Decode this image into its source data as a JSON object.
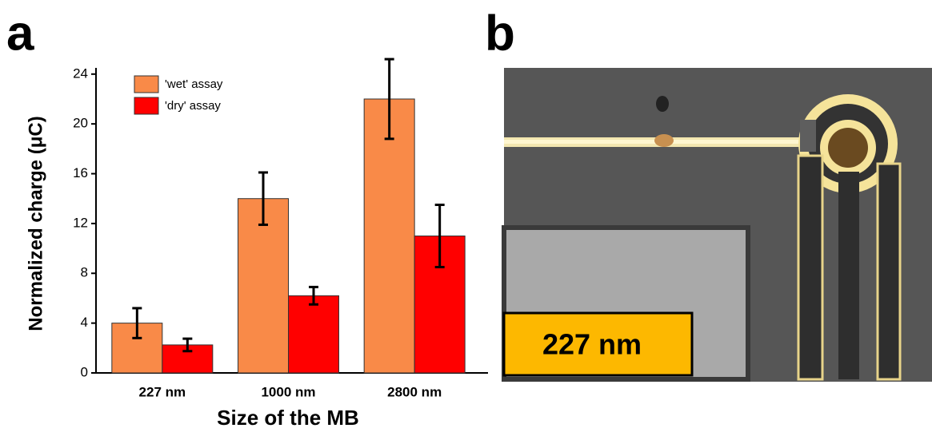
{
  "panel_labels": [
    "a",
    "b"
  ],
  "chart_data": {
    "type": "bar",
    "x_label": "Size of the MB",
    "y_label": "Normalized charge (μC)",
    "categories": [
      "227 nm",
      "1000 nm",
      "2800 nm"
    ],
    "series": [
      {
        "name": "'wet' assay",
        "color": "#f98a48",
        "values": [
          4,
          14,
          22
        ],
        "errors": [
          1.2,
          2.1,
          3.2
        ]
      },
      {
        "name": "'dry' assay",
        "color": "#ff0000",
        "values": [
          2.25,
          6.2,
          11
        ],
        "errors": [
          0.5,
          0.7,
          2.5
        ]
      }
    ],
    "ylim": [
      0,
      24.5
    ],
    "yticks": [
      0,
      4,
      8,
      12,
      16,
      20,
      24
    ],
    "legend": "upper left"
  },
  "photo": {
    "scale_label": "227 nm"
  }
}
